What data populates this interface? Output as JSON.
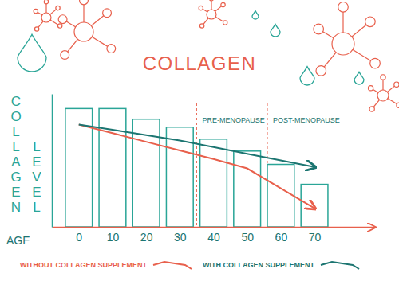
{
  "chart_data": {
    "type": "bar",
    "title": "COLLAGEN",
    "y_label": "COLLAGEN LEVEL",
    "x_label": "AGE",
    "x": [
      0,
      10,
      20,
      30,
      40,
      50,
      60,
      70
    ],
    "xlim": [
      -8,
      88
    ],
    "xticks": [
      0,
      10,
      20,
      30,
      40,
      50,
      60,
      70
    ],
    "ylim": [
      0,
      100
    ],
    "tick_labels": "x",
    "legend": "bottom",
    "series": [
      {
        "type": "bar",
        "color": "#2aa597",
        "values": [
          89,
          89,
          81,
          75,
          66,
          57,
          47,
          32
        ]
      },
      {
        "name": "WITHOUT COLLAGEN SUPPLEMENT",
        "type": "line",
        "color": "#e8604c",
        "marker": "arrow",
        "values": [
          77,
          70.5,
          64,
          57.5,
          51,
          44,
          29,
          14
        ]
      },
      {
        "name": "WITH COLLAGEN SUPPLEMENT",
        "type": "line",
        "color": "#1c7571",
        "marker": "arrow",
        "values": [
          77,
          73,
          69,
          65,
          60,
          55,
          50,
          45
        ]
      }
    ],
    "annotations": [
      {
        "text": "PRE-MENOPAUSE",
        "x": 35
      },
      {
        "text": "POST-MENOPAUSE",
        "x": 56
      }
    ]
  }
}
